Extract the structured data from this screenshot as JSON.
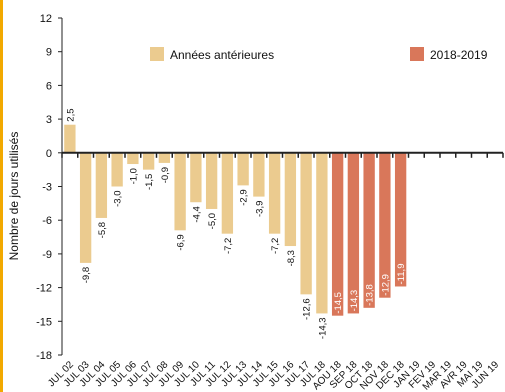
{
  "chart_data": {
    "type": "bar",
    "ylabel": "Nombre de jours utilisés",
    "ylim": [
      -18,
      12
    ],
    "yticks": [
      12,
      9,
      6,
      3,
      0,
      -3,
      -6,
      -9,
      -12,
      -15,
      -18
    ],
    "grid": false,
    "legend_position": "top",
    "colors": {
      "previous": "#ebcb8f",
      "current": "#d9775a",
      "left_border": "#f2a900",
      "axis": "#222222"
    },
    "legend": [
      {
        "name": "Années antérieures",
        "color": "#ebcb8f"
      },
      {
        "name": "2018-2019",
        "color": "#d9775a"
      }
    ],
    "categories": [
      "JUL 02",
      "JUL 03",
      "JUL 04",
      "JUL 05",
      "JUL 06",
      "JUL 07",
      "JUL 08",
      "JUL 09",
      "JUL 10",
      "JUL 11",
      "JUL 12",
      "JUL 13",
      "JUL 14",
      "JUL 15",
      "JUL 16",
      "JUL 17",
      "JUL 18",
      "AOU 18",
      "SEP 18",
      "OCT 18",
      "NOV 18",
      "DEC 18",
      "JAN 19",
      "FEV 19",
      "MAR 19",
      "AVR 19",
      "MAI 19",
      "JUN 19"
    ],
    "values": [
      2.5,
      -9.8,
      -5.8,
      -3.0,
      -1.0,
      -1.5,
      -0.9,
      -6.9,
      -4.4,
      -5.0,
      -7.2,
      -2.9,
      -3.9,
      -7.2,
      -8.3,
      -12.6,
      -14.3,
      -14.5,
      -14.3,
      -13.8,
      -12.9,
      -11.9,
      null,
      null,
      null,
      null,
      null,
      null
    ],
    "value_labels": [
      "2,5",
      "-9,8",
      "-5,8",
      "-3,0",
      "-1,0",
      "-1,5",
      "-0,9",
      "-6,9",
      "-4,4",
      "-5,0",
      "-7,2",
      "-2,9",
      "-3,9",
      "-7,2",
      "-8,3",
      "-12,6",
      "-14,3",
      "-14,5",
      "-14,3",
      "-13,8",
      "-12,9",
      "-11,9",
      "",
      "",
      "",
      "",
      "",
      ""
    ],
    "series_group": [
      "previous",
      "previous",
      "previous",
      "previous",
      "previous",
      "previous",
      "previous",
      "previous",
      "previous",
      "previous",
      "previous",
      "previous",
      "previous",
      "previous",
      "previous",
      "previous",
      "previous",
      "current",
      "current",
      "current",
      "current",
      "current",
      "current",
      "current",
      "current",
      "current",
      "current",
      "current"
    ]
  }
}
